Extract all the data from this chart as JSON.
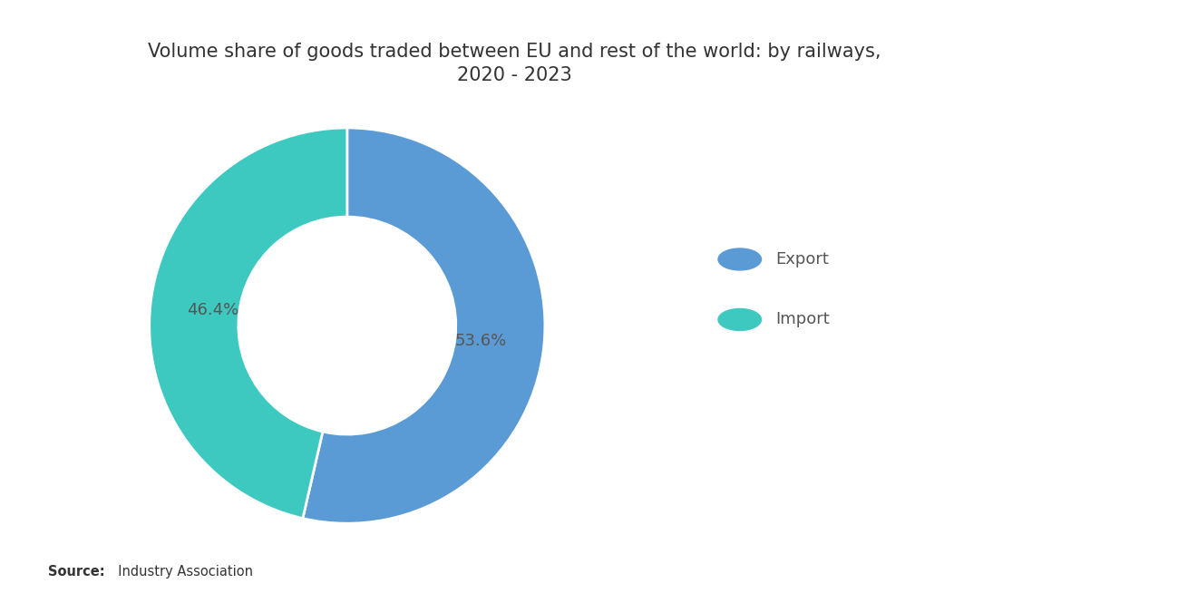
{
  "title": "Volume share of goods traded between EU and rest of the world: by railways,\n2020 - 2023",
  "slices": [
    53.6,
    46.4
  ],
  "labels": [
    "Export",
    "Import"
  ],
  "colors": [
    "#5B9BD5",
    "#3EC9C0"
  ],
  "label_texts": [
    "53.6%",
    "46.4%"
  ],
  "label_color": "#555555",
  "source_bold": "Source:",
  "source_rest": "  Industry Association",
  "title_fontsize": 15,
  "label_fontsize": 13,
  "legend_fontsize": 13,
  "background_color": "#FFFFFF",
  "start_angle": 90,
  "donut_width": 0.45
}
